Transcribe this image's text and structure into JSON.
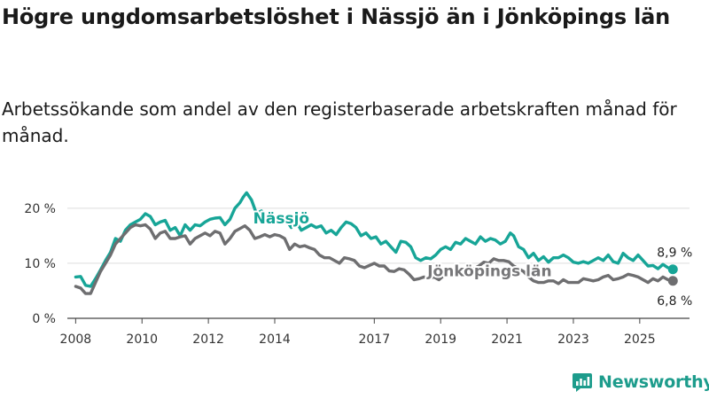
{
  "title": "Högre ungdomsarbetslöshet i Nässjö än i Jönköpings län",
  "subtitle": "Arbetssökande som andel av den registerbaserade arbetskraften månad för månad.",
  "brand": {
    "name": "Newsworthy"
  },
  "colors": {
    "nassjo": "#17a597",
    "jonkoping": "#6e6e70",
    "grid": "#dddddd",
    "axis": "#444444",
    "brand": "#1d9c8c"
  },
  "chart_data": {
    "type": "line",
    "title": "Högre ungdomsarbetslöshet i Nässjö än i Jönköpings län",
    "xlabel": "",
    "ylabel": "",
    "ylim": [
      0,
      24
    ],
    "xlim": [
      2007.75,
      2026.5
    ],
    "grid": true,
    "y_ticks": [
      {
        "value": 0,
        "label": "0 %"
      },
      {
        "value": 10,
        "label": "10 %"
      },
      {
        "value": 20,
        "label": "20 %"
      }
    ],
    "x_ticks": [
      {
        "value": 2008,
        "label": "2008"
      },
      {
        "value": 2010,
        "label": "2010"
      },
      {
        "value": 2012,
        "label": "2012"
      },
      {
        "value": 2014,
        "label": "2014"
      },
      {
        "value": 2017,
        "label": "2017"
      },
      {
        "value": 2019,
        "label": "2019"
      },
      {
        "value": 2021,
        "label": "2021"
      },
      {
        "value": 2023,
        "label": "2023"
      },
      {
        "value": 2025,
        "label": "2025"
      }
    ],
    "series": [
      {
        "name": "Nässjö",
        "label": "Nässjö",
        "end_label": "8,9 %",
        "points": [
          [
            2008.0,
            7.5
          ],
          [
            2008.15,
            7.6
          ],
          [
            2008.3,
            6.0
          ],
          [
            2008.45,
            5.8
          ],
          [
            2008.6,
            7.2
          ],
          [
            2008.75,
            8.8
          ],
          [
            2008.9,
            10.5
          ],
          [
            2009.05,
            12.0
          ],
          [
            2009.2,
            14.5
          ],
          [
            2009.35,
            14.0
          ],
          [
            2009.5,
            16.0
          ],
          [
            2009.65,
            17.0
          ],
          [
            2009.8,
            17.5
          ],
          [
            2009.95,
            18.0
          ],
          [
            2010.1,
            19.0
          ],
          [
            2010.25,
            18.5
          ],
          [
            2010.4,
            17.0
          ],
          [
            2010.55,
            17.5
          ],
          [
            2010.7,
            17.8
          ],
          [
            2010.85,
            16.0
          ],
          [
            2011.0,
            16.5
          ],
          [
            2011.15,
            15.0
          ],
          [
            2011.3,
            17.0
          ],
          [
            2011.45,
            16.0
          ],
          [
            2011.6,
            17.0
          ],
          [
            2011.75,
            16.8
          ],
          [
            2011.9,
            17.5
          ],
          [
            2012.05,
            18.0
          ],
          [
            2012.2,
            18.2
          ],
          [
            2012.35,
            18.3
          ],
          [
            2012.5,
            17.0
          ],
          [
            2012.65,
            18.0
          ],
          [
            2012.8,
            20.0
          ],
          [
            2012.95,
            21.0
          ],
          [
            2013.05,
            22.0
          ],
          [
            2013.15,
            22.8
          ],
          [
            2013.3,
            21.5
          ],
          [
            2013.45,
            19.0
          ],
          [
            2013.6,
            19.5
          ],
          [
            2013.75,
            18.5
          ],
          [
            2013.9,
            19.0
          ],
          [
            2014.05,
            18.0
          ],
          [
            2014.2,
            17.5
          ],
          [
            2014.35,
            17.8
          ],
          [
            2014.5,
            16.5
          ],
          [
            2014.65,
            17.5
          ],
          [
            2014.8,
            16.0
          ],
          [
            2014.95,
            16.5
          ],
          [
            2015.1,
            17.0
          ],
          [
            2015.25,
            16.5
          ],
          [
            2015.4,
            16.8
          ],
          [
            2015.55,
            15.5
          ],
          [
            2015.7,
            16.0
          ],
          [
            2015.85,
            15.2
          ],
          [
            2016.0,
            16.5
          ],
          [
            2016.15,
            17.5
          ],
          [
            2016.3,
            17.2
          ],
          [
            2016.45,
            16.5
          ],
          [
            2016.6,
            15.0
          ],
          [
            2016.75,
            15.5
          ],
          [
            2016.9,
            14.5
          ],
          [
            2017.05,
            14.8
          ],
          [
            2017.2,
            13.5
          ],
          [
            2017.35,
            14.0
          ],
          [
            2017.5,
            13.0
          ],
          [
            2017.65,
            12.0
          ],
          [
            2017.8,
            14.0
          ],
          [
            2017.95,
            13.8
          ],
          [
            2018.1,
            13.0
          ],
          [
            2018.25,
            11.0
          ],
          [
            2018.4,
            10.5
          ],
          [
            2018.55,
            11.0
          ],
          [
            2018.7,
            10.8
          ],
          [
            2018.85,
            11.5
          ],
          [
            2019.0,
            12.5
          ],
          [
            2019.15,
            13.0
          ],
          [
            2019.3,
            12.5
          ],
          [
            2019.45,
            13.8
          ],
          [
            2019.6,
            13.5
          ],
          [
            2019.75,
            14.5
          ],
          [
            2019.9,
            14.0
          ],
          [
            2020.05,
            13.5
          ],
          [
            2020.2,
            14.8
          ],
          [
            2020.35,
            14.0
          ],
          [
            2020.5,
            14.5
          ],
          [
            2020.65,
            14.2
          ],
          [
            2020.8,
            13.5
          ],
          [
            2020.95,
            14.0
          ],
          [
            2021.1,
            15.5
          ],
          [
            2021.2,
            15.0
          ],
          [
            2021.35,
            13.0
          ],
          [
            2021.5,
            12.5
          ],
          [
            2021.65,
            11.0
          ],
          [
            2021.8,
            11.8
          ],
          [
            2021.95,
            10.5
          ],
          [
            2022.1,
            11.2
          ],
          [
            2022.25,
            10.2
          ],
          [
            2022.4,
            11.0
          ],
          [
            2022.55,
            11.0
          ],
          [
            2022.7,
            11.5
          ],
          [
            2022.85,
            11.0
          ],
          [
            2023.0,
            10.2
          ],
          [
            2023.15,
            10.0
          ],
          [
            2023.3,
            10.3
          ],
          [
            2023.45,
            10.0
          ],
          [
            2023.6,
            10.5
          ],
          [
            2023.75,
            11.0
          ],
          [
            2023.9,
            10.5
          ],
          [
            2024.05,
            11.5
          ],
          [
            2024.2,
            10.3
          ],
          [
            2024.35,
            10.0
          ],
          [
            2024.5,
            11.8
          ],
          [
            2024.65,
            11.0
          ],
          [
            2024.8,
            10.5
          ],
          [
            2024.95,
            11.5
          ],
          [
            2025.1,
            10.5
          ],
          [
            2025.25,
            9.5
          ],
          [
            2025.4,
            9.6
          ],
          [
            2025.55,
            9.0
          ],
          [
            2025.7,
            9.8
          ],
          [
            2025.85,
            9.2
          ],
          [
            2026.0,
            8.9
          ]
        ]
      },
      {
        "name": "Jönköpings län",
        "label": "Jönköpings län",
        "end_label": "6,8 %",
        "points": [
          [
            2008.0,
            5.8
          ],
          [
            2008.15,
            5.5
          ],
          [
            2008.3,
            4.5
          ],
          [
            2008.45,
            4.5
          ],
          [
            2008.6,
            6.5
          ],
          [
            2008.75,
            8.5
          ],
          [
            2008.9,
            10.0
          ],
          [
            2009.05,
            11.5
          ],
          [
            2009.2,
            13.5
          ],
          [
            2009.35,
            14.5
          ],
          [
            2009.5,
            15.5
          ],
          [
            2009.65,
            16.5
          ],
          [
            2009.8,
            17.0
          ],
          [
            2009.95,
            16.8
          ],
          [
            2010.1,
            17.0
          ],
          [
            2010.25,
            16.2
          ],
          [
            2010.4,
            14.5
          ],
          [
            2010.55,
            15.5
          ],
          [
            2010.7,
            15.8
          ],
          [
            2010.85,
            14.5
          ],
          [
            2011.0,
            14.5
          ],
          [
            2011.15,
            14.8
          ],
          [
            2011.3,
            15.0
          ],
          [
            2011.45,
            13.5
          ],
          [
            2011.6,
            14.5
          ],
          [
            2011.75,
            15.0
          ],
          [
            2011.9,
            15.5
          ],
          [
            2012.05,
            15.0
          ],
          [
            2012.2,
            15.8
          ],
          [
            2012.35,
            15.5
          ],
          [
            2012.5,
            13.5
          ],
          [
            2012.65,
            14.5
          ],
          [
            2012.8,
            15.8
          ],
          [
            2012.95,
            16.3
          ],
          [
            2013.1,
            16.8
          ],
          [
            2013.25,
            16.0
          ],
          [
            2013.4,
            14.5
          ],
          [
            2013.55,
            14.8
          ],
          [
            2013.7,
            15.2
          ],
          [
            2013.85,
            14.8
          ],
          [
            2014.0,
            15.2
          ],
          [
            2014.15,
            15.0
          ],
          [
            2014.3,
            14.5
          ],
          [
            2014.45,
            12.5
          ],
          [
            2014.6,
            13.5
          ],
          [
            2014.75,
            13.0
          ],
          [
            2014.9,
            13.2
          ],
          [
            2015.05,
            12.8
          ],
          [
            2015.2,
            12.5
          ],
          [
            2015.35,
            11.5
          ],
          [
            2015.5,
            11.0
          ],
          [
            2015.65,
            11.0
          ],
          [
            2015.8,
            10.5
          ],
          [
            2015.95,
            10.0
          ],
          [
            2016.1,
            11.0
          ],
          [
            2016.25,
            10.8
          ],
          [
            2016.4,
            10.5
          ],
          [
            2016.55,
            9.5
          ],
          [
            2016.7,
            9.2
          ],
          [
            2016.85,
            9.6
          ],
          [
            2017.0,
            10.0
          ],
          [
            2017.15,
            9.5
          ],
          [
            2017.3,
            9.5
          ],
          [
            2017.45,
            8.6
          ],
          [
            2017.6,
            8.5
          ],
          [
            2017.75,
            9.0
          ],
          [
            2017.9,
            8.8
          ],
          [
            2018.05,
            8.0
          ],
          [
            2018.2,
            7.0
          ],
          [
            2018.35,
            7.2
          ],
          [
            2018.5,
            7.5
          ],
          [
            2018.65,
            7.2
          ],
          [
            2018.8,
            7.5
          ],
          [
            2018.95,
            7.0
          ],
          [
            2019.1,
            7.8
          ],
          [
            2019.25,
            8.0
          ],
          [
            2019.4,
            8.5
          ],
          [
            2019.55,
            8.2
          ],
          [
            2019.7,
            8.5
          ],
          [
            2019.85,
            8.8
          ],
          [
            2020.0,
            9.0
          ],
          [
            2020.15,
            9.5
          ],
          [
            2020.3,
            10.2
          ],
          [
            2020.45,
            10.0
          ],
          [
            2020.6,
            10.8
          ],
          [
            2020.75,
            10.5
          ],
          [
            2020.9,
            10.5
          ],
          [
            2021.05,
            10.3
          ],
          [
            2021.2,
            9.5
          ],
          [
            2021.35,
            9.0
          ],
          [
            2021.5,
            8.5
          ],
          [
            2021.65,
            7.5
          ],
          [
            2021.8,
            6.8
          ],
          [
            2021.95,
            6.5
          ],
          [
            2022.1,
            6.5
          ],
          [
            2022.25,
            6.8
          ],
          [
            2022.4,
            6.8
          ],
          [
            2022.55,
            6.3
          ],
          [
            2022.7,
            7.0
          ],
          [
            2022.85,
            6.5
          ],
          [
            2023.0,
            6.5
          ],
          [
            2023.15,
            6.5
          ],
          [
            2023.3,
            7.2
          ],
          [
            2023.45,
            7.0
          ],
          [
            2023.6,
            6.8
          ],
          [
            2023.75,
            7.0
          ],
          [
            2023.9,
            7.5
          ],
          [
            2024.05,
            7.8
          ],
          [
            2024.2,
            7.0
          ],
          [
            2024.35,
            7.2
          ],
          [
            2024.5,
            7.5
          ],
          [
            2024.65,
            8.0
          ],
          [
            2024.8,
            7.8
          ],
          [
            2024.95,
            7.5
          ],
          [
            2025.1,
            7.0
          ],
          [
            2025.25,
            6.5
          ],
          [
            2025.4,
            7.2
          ],
          [
            2025.55,
            6.8
          ],
          [
            2025.7,
            7.5
          ],
          [
            2025.85,
            7.0
          ],
          [
            2026.0,
            6.8
          ]
        ]
      }
    ]
  }
}
